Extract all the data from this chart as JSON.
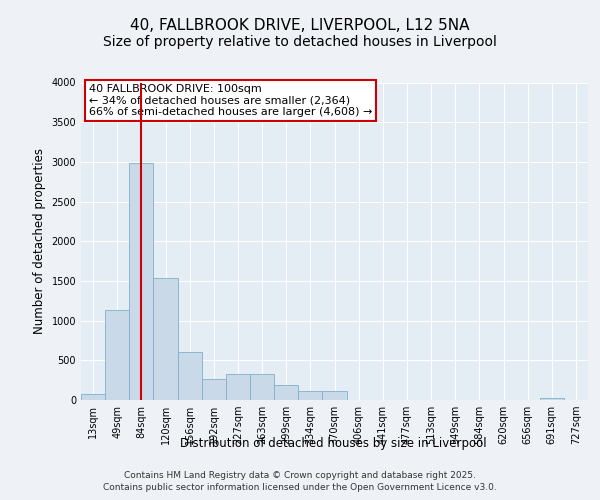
{
  "title_line1": "40, FALLBROOK DRIVE, LIVERPOOL, L12 5NA",
  "title_line2": "Size of property relative to detached houses in Liverpool",
  "xlabel": "Distribution of detached houses by size in Liverpool",
  "ylabel": "Number of detached properties",
  "bar_labels": [
    "13sqm",
    "49sqm",
    "84sqm",
    "120sqm",
    "156sqm",
    "192sqm",
    "227sqm",
    "263sqm",
    "299sqm",
    "334sqm",
    "370sqm",
    "406sqm",
    "441sqm",
    "477sqm",
    "513sqm",
    "549sqm",
    "584sqm",
    "620sqm",
    "656sqm",
    "691sqm",
    "727sqm"
  ],
  "bar_values": [
    70,
    1130,
    2980,
    1540,
    600,
    260,
    330,
    330,
    195,
    110,
    110,
    0,
    0,
    0,
    0,
    0,
    0,
    0,
    0,
    25,
    0
  ],
  "bar_color": "#c9d9e8",
  "bar_edgecolor": "#7fb0d0",
  "vline_color": "#cc0000",
  "vline_bar_index": 2,
  "ylim_max": 4000,
  "yticks": [
    0,
    500,
    1000,
    1500,
    2000,
    2500,
    3000,
    3500,
    4000
  ],
  "annotation_title": "40 FALLBROOK DRIVE: 100sqm",
  "annotation_line1": "← 34% of detached houses are smaller (2,364)",
  "annotation_line2": "66% of semi-detached houses are larger (4,608) →",
  "annotation_box_edgecolor": "#cc0000",
  "footer_line1": "Contains HM Land Registry data © Crown copyright and database right 2025.",
  "footer_line2": "Contains public sector information licensed under the Open Government Licence v3.0.",
  "bg_color": "#eef2f7",
  "plot_bg_color": "#e4ecf4",
  "grid_color": "#ffffff",
  "title_fontsize": 11,
  "subtitle_fontsize": 10,
  "axis_label_fontsize": 8.5,
  "tick_fontsize": 7,
  "annotation_fontsize": 8,
  "footer_fontsize": 6.5
}
